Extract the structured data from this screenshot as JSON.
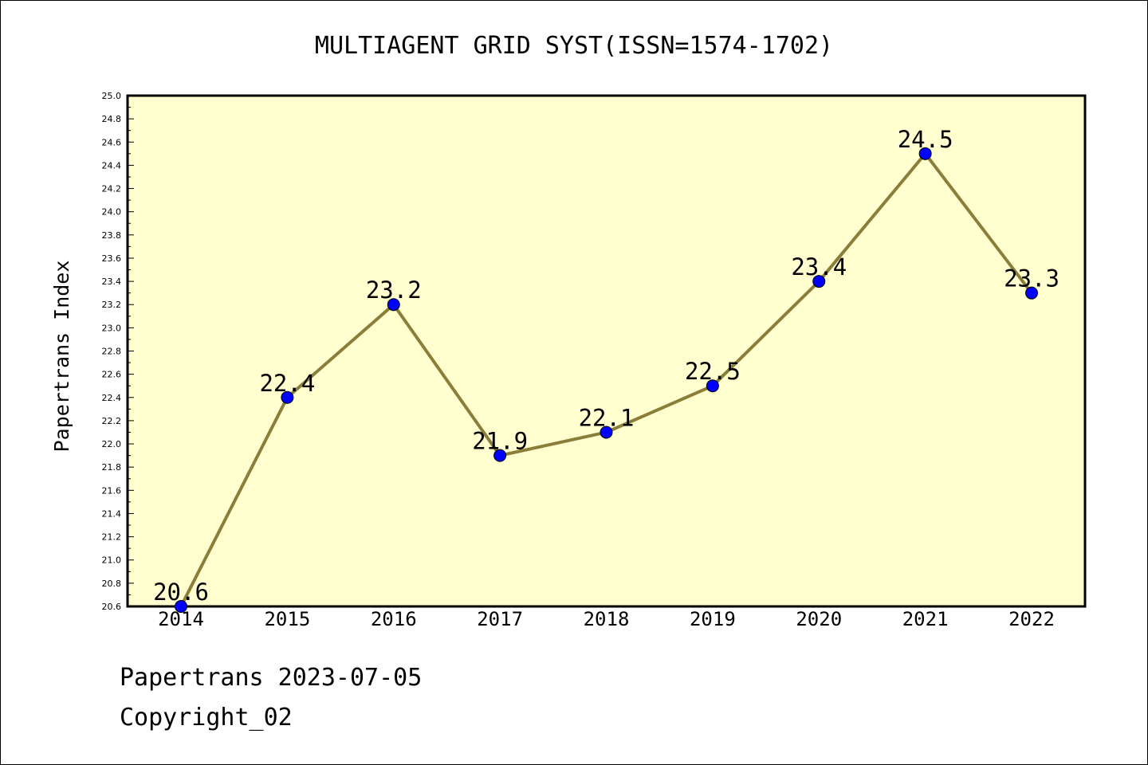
{
  "chart_data": {
    "type": "line",
    "title": "MULTIAGENT GRID SYST(ISSN=1574-1702)",
    "xlabel": "",
    "ylabel": "Papertrans Index",
    "categories": [
      "2014",
      "2015",
      "2016",
      "2017",
      "2018",
      "2019",
      "2020",
      "2021",
      "2022"
    ],
    "series": [
      {
        "values": [
          20.6,
          22.4,
          23.2,
          21.9,
          22.1,
          22.5,
          23.4,
          24.5,
          23.3
        ],
        "data_labels": [
          "20.6",
          "22.4",
          "23.2",
          "21.9",
          "22.1",
          "22.5",
          "23.4",
          "24.5",
          "23.3"
        ]
      }
    ],
    "ylim": [
      20.6,
      25.0
    ],
    "yticks": [
      "20.6",
      "20.8",
      "21.0",
      "21.2",
      "21.4",
      "21.6",
      "21.8",
      "22.0",
      "22.2",
      "22.4",
      "22.6",
      "22.8",
      "23.0",
      "23.2",
      "23.4",
      "23.6",
      "23.8",
      "24.0",
      "24.2",
      "24.4",
      "24.6",
      "24.8",
      "25.0"
    ],
    "grid": false,
    "legend": "none",
    "colors": {
      "plot_background": "#ffffd0",
      "line": "#8b7d3a",
      "marker": "#0000ff",
      "axes": "#000000"
    }
  },
  "footer": {
    "line1": "Papertrans 2023-07-05",
    "line2": "Copyright_02"
  }
}
